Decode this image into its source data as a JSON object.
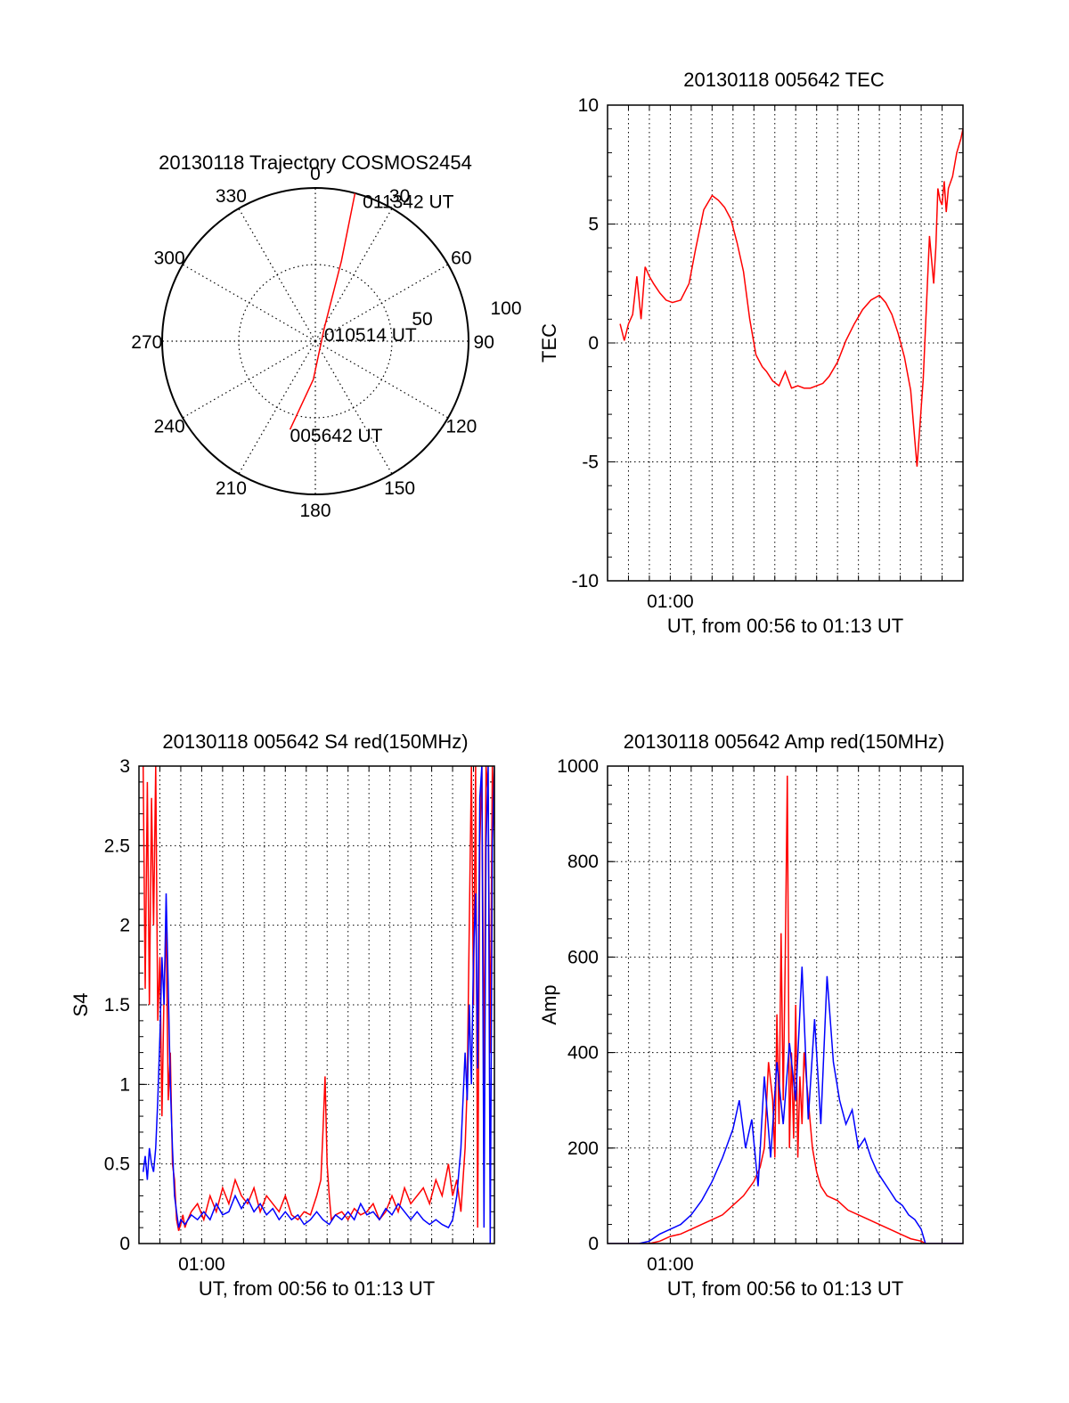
{
  "figure": {
    "colors": {
      "red": "#ff0000",
      "blue": "#0000ff",
      "axes": "#000000"
    }
  },
  "chart_data": [
    {
      "id": "trajectory",
      "type": "polar",
      "title": "20130118 Trajectory COSMOS2454",
      "azimuth_labels": [
        "0",
        "30",
        "60",
        "90",
        "120",
        "150",
        "180",
        "210",
        "240",
        "270",
        "300",
        "330"
      ],
      "radial_labels": [
        "50",
        "100"
      ],
      "radial_max": 100,
      "grid": true,
      "track": {
        "color": "#ff0000",
        "points": [
          [
            196,
            60
          ],
          [
            183,
            25
          ],
          [
            35,
            10
          ],
          [
            18,
            55
          ],
          [
            15,
            100
          ]
        ]
      },
      "annotations": [
        {
          "text": "011342 UT",
          "az": 18,
          "r": 100
        },
        {
          "text": "010514 UT",
          "az": 35,
          "r": 10
        },
        {
          "text": "005642 UT",
          "az": 196,
          "r": 60
        }
      ]
    },
    {
      "id": "tec",
      "type": "line",
      "title": "20130118 005642 TEC",
      "xlabel": "UT, from 00:56 to 01:13 UT",
      "ylabel": "TEC",
      "xlim": [
        0.0,
        17.0
      ],
      "ylim": [
        -10,
        10
      ],
      "yticks": [
        -10,
        -5,
        0,
        5,
        10
      ],
      "xticks": [
        {
          "label": "01:00",
          "value": 3.0
        }
      ],
      "grid": true,
      "series": [
        {
          "color": "#ff0000",
          "x": [
            0.6,
            0.8,
            1.0,
            1.2,
            1.4,
            1.6,
            1.8,
            2.0,
            2.2,
            2.5,
            2.8,
            3.1,
            3.5,
            3.9,
            4.2,
            4.6,
            5.0,
            5.3,
            5.6,
            5.9,
            6.2,
            6.5,
            6.8,
            7.1,
            7.4,
            7.6,
            7.9,
            8.2,
            8.5,
            8.8,
            9.1,
            9.4,
            9.7,
            10.0,
            10.3,
            10.6,
            11.0,
            11.4,
            11.8,
            12.2,
            12.6,
            13.0,
            13.3,
            13.6,
            13.9,
            14.2,
            14.5,
            14.8,
            15.1,
            15.4,
            15.6,
            15.7,
            15.8,
            15.9,
            16.0,
            16.1,
            16.2,
            16.3,
            16.5,
            16.7,
            16.9,
            17.0
          ],
          "y": [
            0.8,
            0.1,
            0.8,
            1.2,
            2.8,
            1.0,
            3.2,
            2.8,
            2.5,
            2.1,
            1.8,
            1.7,
            1.8,
            2.5,
            3.9,
            5.6,
            6.2,
            6.0,
            5.7,
            5.2,
            4.2,
            3.0,
            1.0,
            -0.5,
            -1.0,
            -1.2,
            -1.6,
            -1.8,
            -1.2,
            -1.9,
            -1.8,
            -1.9,
            -1.9,
            -1.8,
            -1.7,
            -1.4,
            -0.8,
            0.1,
            0.8,
            1.4,
            1.8,
            2.0,
            1.7,
            1.2,
            0.4,
            -0.6,
            -2.0,
            -5.2,
            -1.5,
            4.5,
            2.5,
            4.0,
            6.5,
            6.0,
            5.8,
            6.8,
            5.5,
            6.5,
            7.0,
            8.0,
            8.6,
            9.0
          ]
        }
      ]
    },
    {
      "id": "s4",
      "type": "line",
      "title": "20130118 005642 S4 red(150MHz)",
      "xlabel": "UT, from 00:56 to 01:13 UT",
      "ylabel": "S4",
      "xlim": [
        0.0,
        17.0
      ],
      "ylim": [
        0,
        3
      ],
      "yticks": [
        0,
        0.5,
        1,
        1.5,
        2,
        2.5,
        3
      ],
      "ytick_labels": [
        "0",
        "0.5",
        "1",
        "1.5",
        "2",
        "2.5",
        "3"
      ],
      "xticks": [
        {
          "label": "01:00",
          "value": 3.0
        }
      ],
      "grid": true,
      "series": [
        {
          "color": "#ff0000",
          "x": [
            0.2,
            0.3,
            0.4,
            0.5,
            0.6,
            0.7,
            0.8,
            0.9,
            1.0,
            1.1,
            1.2,
            1.3,
            1.4,
            1.5,
            1.6,
            1.7,
            1.8,
            1.9,
            2.0,
            2.1,
            2.2,
            2.3,
            2.5,
            2.8,
            3.1,
            3.4,
            3.7,
            4.0,
            4.3,
            4.6,
            4.9,
            5.2,
            5.5,
            5.8,
            6.1,
            6.4,
            6.7,
            7.0,
            7.3,
            7.6,
            7.9,
            8.2,
            8.5,
            8.7,
            8.8,
            8.9,
            9.0,
            9.1,
            9.2,
            9.4,
            9.7,
            10.0,
            10.3,
            10.6,
            10.9,
            11.2,
            11.5,
            11.8,
            12.1,
            12.4,
            12.7,
            13.0,
            13.3,
            13.6,
            13.9,
            14.2,
            14.5,
            14.8,
            15.0,
            15.2,
            15.4,
            15.6,
            15.7,
            15.8,
            15.9,
            16.0,
            16.1,
            16.2,
            16.3,
            16.4,
            16.5,
            16.6,
            16.7,
            16.8,
            16.9,
            17.0
          ],
          "y": [
            3.0,
            1.6,
            2.9,
            1.5,
            2.8,
            2.0,
            3.0,
            1.4,
            1.8,
            0.8,
            1.6,
            2.0,
            0.9,
            1.2,
            0.5,
            0.4,
            0.15,
            0.08,
            0.12,
            0.18,
            0.1,
            0.14,
            0.2,
            0.25,
            0.15,
            0.3,
            0.2,
            0.35,
            0.25,
            0.4,
            0.3,
            0.25,
            0.35,
            0.2,
            0.3,
            0.25,
            0.2,
            0.3,
            0.18,
            0.15,
            0.2,
            0.18,
            0.3,
            0.4,
            0.7,
            1.05,
            0.5,
            0.3,
            0.15,
            0.18,
            0.2,
            0.15,
            0.22,
            0.18,
            0.2,
            0.25,
            0.15,
            0.2,
            0.3,
            0.2,
            0.35,
            0.25,
            0.3,
            0.35,
            0.25,
            0.4,
            0.3,
            0.5,
            0.3,
            0.4,
            0.2,
            0.6,
            1.0,
            2.0,
            3.0,
            1.5,
            3.0,
            0.1,
            2.5,
            3.0,
            1.0,
            3.0,
            2.8,
            1.2,
            3.0,
            2.6
          ]
        },
        {
          "color": "#0000ff",
          "x": [
            0.2,
            0.3,
            0.4,
            0.5,
            0.6,
            0.7,
            0.8,
            0.9,
            1.0,
            1.1,
            1.2,
            1.3,
            1.4,
            1.5,
            1.6,
            1.7,
            1.8,
            1.9,
            2.0,
            2.2,
            2.5,
            2.8,
            3.1,
            3.4,
            3.7,
            4.0,
            4.3,
            4.6,
            4.9,
            5.2,
            5.5,
            5.8,
            6.1,
            6.4,
            6.7,
            7.0,
            7.3,
            7.6,
            7.9,
            8.2,
            8.5,
            8.8,
            9.1,
            9.4,
            9.7,
            10.0,
            10.3,
            10.6,
            10.9,
            11.2,
            11.5,
            11.8,
            12.1,
            12.4,
            12.7,
            13.0,
            13.3,
            13.6,
            13.9,
            14.2,
            14.5,
            14.8,
            15.0,
            15.2,
            15.4,
            15.6,
            15.7,
            15.8,
            15.9,
            16.0,
            16.1,
            16.2,
            16.3,
            16.4,
            16.5,
            16.6,
            16.7,
            16.8,
            16.9,
            17.0
          ],
          "y": [
            0.45,
            0.55,
            0.4,
            0.6,
            0.5,
            0.45,
            0.6,
            0.9,
            1.3,
            1.8,
            1.5,
            2.2,
            1.6,
            1.0,
            0.6,
            0.3,
            0.2,
            0.1,
            0.15,
            0.12,
            0.18,
            0.15,
            0.2,
            0.15,
            0.25,
            0.18,
            0.2,
            0.3,
            0.22,
            0.28,
            0.2,
            0.25,
            0.18,
            0.22,
            0.15,
            0.2,
            0.15,
            0.18,
            0.12,
            0.15,
            0.2,
            0.15,
            0.12,
            0.18,
            0.15,
            0.2,
            0.15,
            0.25,
            0.18,
            0.2,
            0.15,
            0.22,
            0.18,
            0.25,
            0.2,
            0.15,
            0.2,
            0.15,
            0.12,
            0.15,
            0.12,
            0.1,
            0.15,
            0.3,
            0.6,
            1.2,
            0.9,
            1.5,
            1.0,
            1.8,
            2.2,
            1.1,
            2.8,
            3.0,
            0.1,
            2.5,
            3.0,
            0.0,
            2.5,
            3.0
          ]
        }
      ]
    },
    {
      "id": "amp",
      "type": "line",
      "title": "20130118 005642 Amp red(150MHz)",
      "xlabel": "UT, from 00:56 to 01:13 UT",
      "ylabel": "Amp",
      "xlim": [
        0.0,
        17.0
      ],
      "ylim": [
        0,
        1000
      ],
      "yticks": [
        0,
        200,
        400,
        600,
        800,
        1000
      ],
      "xticks": [
        {
          "label": "01:00",
          "value": 3.0
        }
      ],
      "grid": true,
      "series": [
        {
          "color": "#ff0000",
          "x": [
            0.0,
            1.0,
            2.0,
            2.5,
            3.0,
            3.5,
            4.0,
            4.5,
            5.0,
            5.5,
            6.0,
            6.5,
            7.0,
            7.3,
            7.5,
            7.7,
            7.9,
            8.0,
            8.1,
            8.2,
            8.3,
            8.4,
            8.5,
            8.6,
            8.7,
            8.8,
            8.9,
            9.0,
            9.1,
            9.2,
            9.3,
            9.4,
            9.6,
            9.8,
            10.0,
            10.2,
            10.5,
            11.0,
            11.5,
            12.0,
            12.5,
            13.0,
            13.5,
            14.0,
            14.5,
            15.0,
            15.2,
            16.0,
            17.0
          ],
          "y": [
            0,
            0,
            0,
            5,
            15,
            20,
            30,
            40,
            50,
            60,
            80,
            100,
            130,
            160,
            200,
            380,
            300,
            180,
            480,
            250,
            650,
            300,
            600,
            980,
            200,
            400,
            220,
            500,
            180,
            350,
            250,
            400,
            300,
            200,
            150,
            120,
            100,
            90,
            70,
            60,
            50,
            40,
            30,
            20,
            10,
            5,
            0,
            0,
            0
          ]
        },
        {
          "color": "#0000ff",
          "x": [
            0.0,
            1.0,
            1.5,
            2.0,
            2.5,
            3.0,
            3.5,
            4.0,
            4.5,
            5.0,
            5.5,
            6.0,
            6.3,
            6.6,
            6.9,
            7.2,
            7.5,
            7.8,
            8.1,
            8.4,
            8.7,
            9.0,
            9.3,
            9.6,
            9.9,
            10.2,
            10.5,
            10.8,
            11.1,
            11.4,
            11.7,
            12.0,
            12.3,
            12.6,
            12.9,
            13.2,
            13.5,
            13.8,
            14.1,
            14.4,
            14.7,
            15.0,
            15.2,
            16.0,
            17.0
          ],
          "y": [
            0,
            0,
            0,
            5,
            20,
            30,
            40,
            60,
            90,
            130,
            180,
            240,
            300,
            200,
            260,
            120,
            350,
            180,
            380,
            250,
            420,
            300,
            580,
            260,
            470,
            250,
            560,
            380,
            300,
            250,
            280,
            200,
            220,
            180,
            150,
            130,
            110,
            90,
            80,
            60,
            50,
            30,
            0,
            0,
            0
          ]
        }
      ]
    }
  ]
}
